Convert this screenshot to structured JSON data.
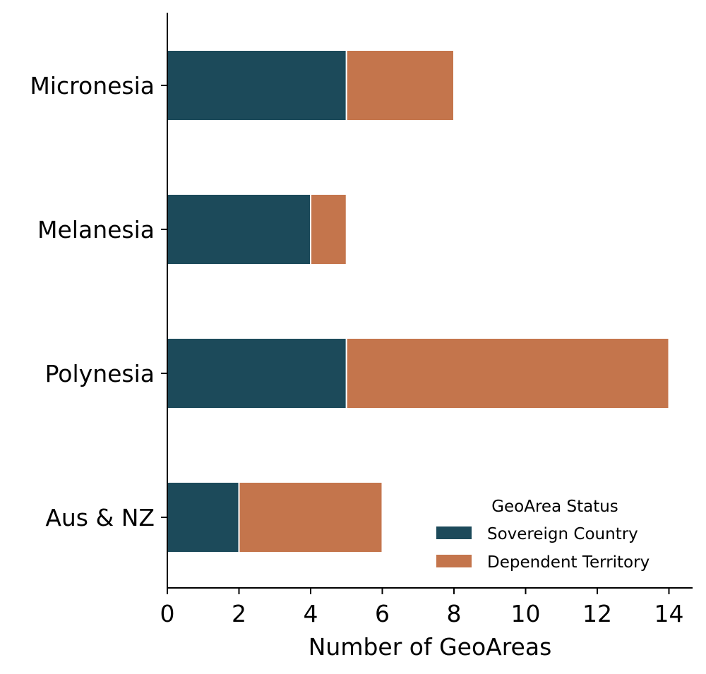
{
  "chart_data": {
    "type": "bar",
    "orientation": "horizontal",
    "stacked": true,
    "categories": [
      "Micronesia",
      "Melanesia",
      "Polynesia",
      "Aus & NZ"
    ],
    "series": [
      {
        "name": "Sovereign Country",
        "values": [
          5,
          4,
          5,
          2
        ],
        "color": "#1c4a5a"
      },
      {
        "name": "Dependent Territory",
        "values": [
          3,
          1,
          9,
          4
        ],
        "color": "#c4754c"
      }
    ],
    "xlabel": "Number of GeoAreas",
    "ylabel": "",
    "xlim": [
      0,
      14.7
    ],
    "xticks": [
      0,
      2,
      4,
      6,
      8,
      10,
      12,
      14
    ],
    "xtick_labels": [
      "0",
      "2",
      "4",
      "6",
      "8",
      "10",
      "12",
      "14"
    ],
    "legend": {
      "title": "GeoArea Status",
      "placement": "bottom-right",
      "entries": [
        "Sovereign Country",
        "Dependent Territory"
      ]
    },
    "grid": false
  }
}
